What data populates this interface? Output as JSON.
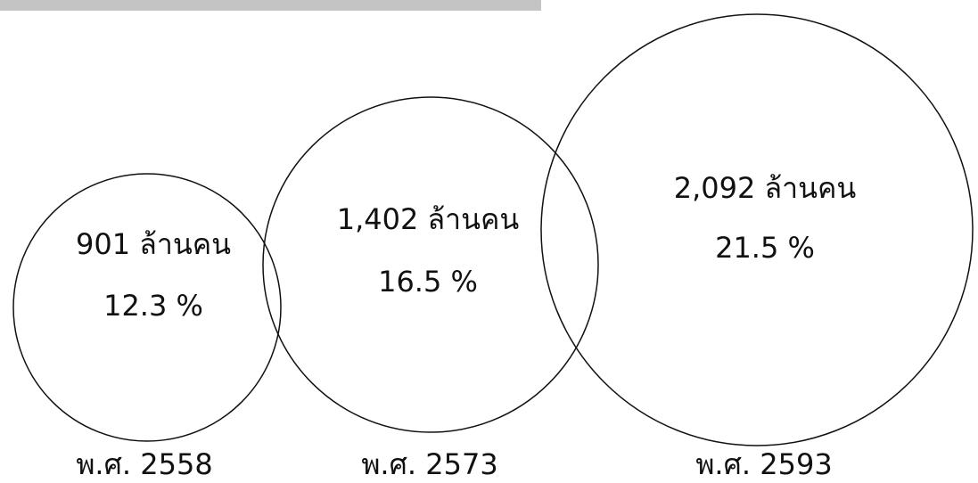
{
  "nodes": [
    {
      "amount": "901 ล้านคน",
      "percent": "12.3 %",
      "year": "พ.ศ. 2558"
    },
    {
      "amount": "1,402 ล้านคน",
      "percent": "16.5 %",
      "year": "พ.ศ. 2573"
    },
    {
      "amount": "2,092 ล้านคน",
      "percent": "21.5 %",
      "year": "พ.ศ. 2593"
    }
  ]
}
